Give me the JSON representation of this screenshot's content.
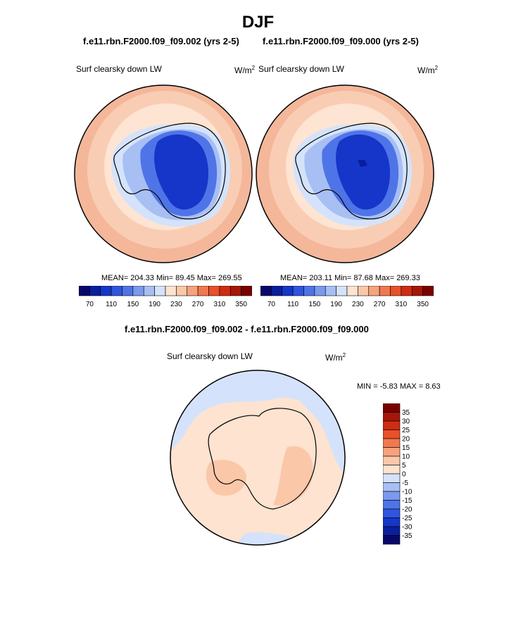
{
  "page": {
    "title": "DJF",
    "case_left": "f.e11.rbn.F2000.f09_f09.002 (yrs 2-5)",
    "case_right": "f.e11.rbn.F2000.f09_f09.000 (yrs 2-5)",
    "diff_title": "f.e11.rbn.F2000.f09_f09.002 - f.e11.rbn.F2000.f09_f09.000"
  },
  "colors": {
    "scale": [
      "#08086b",
      "#0a1f9c",
      "#1536c8",
      "#2f55e0",
      "#4f74e8",
      "#7a9aee",
      "#a8bff4",
      "#d4e3fb",
      "#fde3d0",
      "#fbc7a9",
      "#f6a37d",
      "#f0794f",
      "#e8512a",
      "#cf2c12",
      "#a51708",
      "#7a0000"
    ],
    "land_outline": "#000000",
    "ocean_outer": "#f4b79a",
    "ocean_mid": "#f9cdb4",
    "ocean_inner": "#fde4d3"
  },
  "chart_data": [
    {
      "type": "heatmap",
      "panel": "left",
      "variable": "Surf clearsky down LW",
      "units_base": "W/m",
      "units_sup": "2",
      "projection": "south-polar-stereographic",
      "stats_text": "MEAN= 204.33  Min=  89.45  Max= 269.55",
      "mean": 204.33,
      "min": 89.45,
      "max": 269.55,
      "colorbar_ticks": [
        "70",
        "110",
        "150",
        "190",
        "230",
        "270",
        "310",
        "350"
      ],
      "colorbar_levels": [
        70,
        90,
        110,
        130,
        150,
        170,
        190,
        210,
        230,
        250,
        270,
        290,
        310,
        330,
        350
      ]
    },
    {
      "type": "heatmap",
      "panel": "right",
      "variable": "Surf clearsky down LW",
      "units_base": "W/m",
      "units_sup": "2",
      "projection": "south-polar-stereographic",
      "stats_text": "MEAN= 203.11  Min=  87.68  Max= 269.33",
      "mean": 203.11,
      "min": 87.68,
      "max": 269.33,
      "colorbar_ticks": [
        "70",
        "110",
        "150",
        "190",
        "230",
        "270",
        "310",
        "350"
      ],
      "colorbar_levels": [
        70,
        90,
        110,
        130,
        150,
        170,
        190,
        210,
        230,
        250,
        270,
        290,
        310,
        330,
        350
      ]
    },
    {
      "type": "heatmap",
      "panel": "difference",
      "variable": "Surf clearsky down LW",
      "units_base": "W/m",
      "units_sup": "2",
      "projection": "south-polar-stereographic",
      "stats_text": "MIN =  -5.83 MAX =   8.63",
      "min": -5.83,
      "max": 8.63,
      "colorbar_ticks": [
        "35",
        "30",
        "25",
        "20",
        "15",
        "10",
        "5",
        "0",
        "-5",
        "-10",
        "-15",
        "-20",
        "-25",
        "-30",
        "-35"
      ],
      "colorbar_colors": [
        "#7a0000",
        "#a51708",
        "#cf2c12",
        "#e8512a",
        "#f0794f",
        "#f6a37d",
        "#fbc7a9",
        "#fde3d0",
        "#d4e3fb",
        "#a8bff4",
        "#7a9aee",
        "#4f74e8",
        "#2f55e0",
        "#1536c8",
        "#0a1f9c",
        "#08086b"
      ]
    }
  ]
}
